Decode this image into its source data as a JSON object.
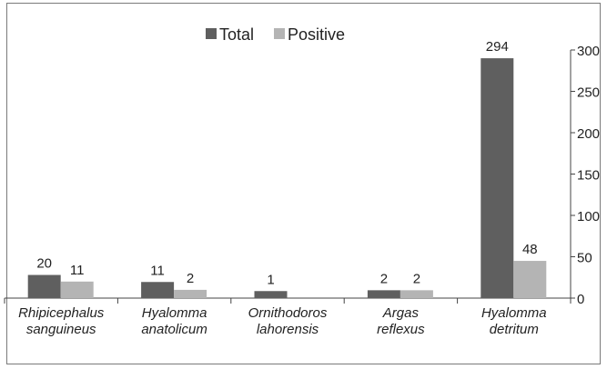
{
  "chart_data": {
    "type": "bar",
    "categories": [
      [
        "Rhipicephalus",
        "sanguineus"
      ],
      [
        "Hyalomma",
        "anatolicum"
      ],
      [
        "Ornithodoros",
        "lahorensis"
      ],
      [
        "Argas",
        "reflexus"
      ],
      [
        "Hyalomma",
        "detritum"
      ]
    ],
    "series": [
      {
        "name": "Total",
        "color": "#5f5f5f",
        "values": [
          20,
          11,
          1,
          2,
          294
        ]
      },
      {
        "name": "Positive",
        "color": "#b4b4b4",
        "values": [
          11,
          2,
          null,
          2,
          48
        ]
      }
    ],
    "bar_heights_axis": [
      28,
      19.5,
      8.5,
      9.5,
      290
    ],
    "bar_heights_axis_positive": [
      20,
      10,
      0,
      9.5,
      45
    ],
    "data_labels": {
      "Total": [
        "20",
        "11",
        "1",
        "2",
        "294"
      ],
      "Positive": [
        "11",
        "2",
        "",
        "2",
        "48"
      ]
    },
    "ylim": [
      0,
      300
    ],
    "yticks": [
      "0",
      "50",
      "100",
      "150",
      "200",
      "250",
      "300"
    ],
    "y_axis_side": "right",
    "legend_position": "top-center",
    "grid": false,
    "title": "",
    "xlabel": "",
    "ylabel": ""
  }
}
